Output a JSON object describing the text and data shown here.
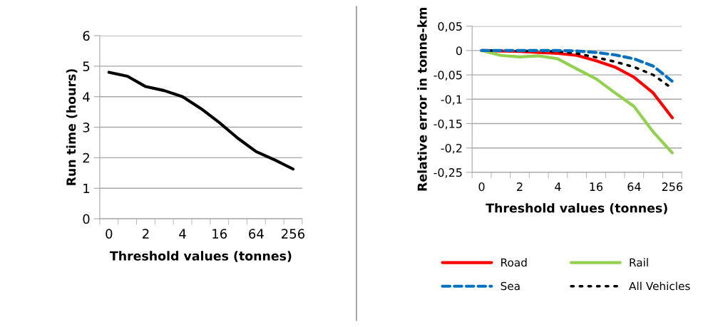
{
  "chart_data": [
    {
      "type": "line",
      "xlabel": "Threshold values (tonnes)",
      "ylabel": "Run time (hours)",
      "categories": [
        "0",
        null,
        "2",
        null,
        "4",
        null,
        "16",
        null,
        "64",
        null,
        "256"
      ],
      "series": [
        {
          "color": "#000000",
          "values": [
            4.8,
            4.67,
            4.33,
            4.2,
            4.0,
            3.61,
            3.15,
            2.64,
            2.2,
            1.93,
            1.63
          ]
        }
      ],
      "ylim": [
        0,
        6
      ],
      "yticks": [
        0,
        1,
        2,
        3,
        4,
        5,
        6
      ],
      "grid": "y",
      "legend": false,
      "marker": "none"
    },
    {
      "type": "line",
      "xlabel": "Threshold values (tonnes)",
      "ylabel": "Relative error in tonne-km",
      "categories": [
        "0",
        null,
        "2",
        null,
        "4",
        null,
        "16",
        null,
        "64",
        null,
        "256"
      ],
      "series": [
        {
          "name": "Road",
          "color": "#ff0000",
          "line_style": "solid",
          "values": [
            0,
            -0.001,
            -0.002,
            -0.004,
            -0.006,
            -0.01,
            -0.021,
            -0.034,
            -0.055,
            -0.087,
            -0.138
          ]
        },
        {
          "name": "Rail",
          "color": "#92d050",
          "line_style": "solid",
          "values": [
            0,
            -0.01,
            -0.013,
            -0.011,
            -0.017,
            -0.038,
            -0.058,
            -0.087,
            -0.115,
            -0.167,
            -0.21
          ]
        },
        {
          "name": "Sea",
          "color": "#0070c0",
          "line_style": "dashed",
          "values": [
            0,
            0,
            0,
            0,
            0,
            -0.001,
            -0.004,
            -0.009,
            -0.017,
            -0.032,
            -0.063
          ]
        },
        {
          "name": "All Vehicles",
          "color": "#000000",
          "line_style": "dotted",
          "values": [
            0,
            0,
            -0.001,
            -0.001,
            -0.002,
            -0.006,
            -0.014,
            -0.023,
            -0.034,
            -0.05,
            -0.078
          ]
        }
      ],
      "ylim": [
        -0.25,
        0.05
      ],
      "yticks": [
        {
          "value": -0.25,
          "label": "-0,25"
        },
        {
          "value": -0.2,
          "label": "-0,2"
        },
        {
          "value": -0.15,
          "label": "-0,15"
        },
        {
          "value": -0.1,
          "label": "-0,1"
        },
        {
          "value": -0.05,
          "label": "-0,05"
        },
        0,
        {
          "value": 0.05,
          "label": "0,05"
        }
      ],
      "grid": "y",
      "legend": "bottom",
      "marker": "none"
    }
  ]
}
